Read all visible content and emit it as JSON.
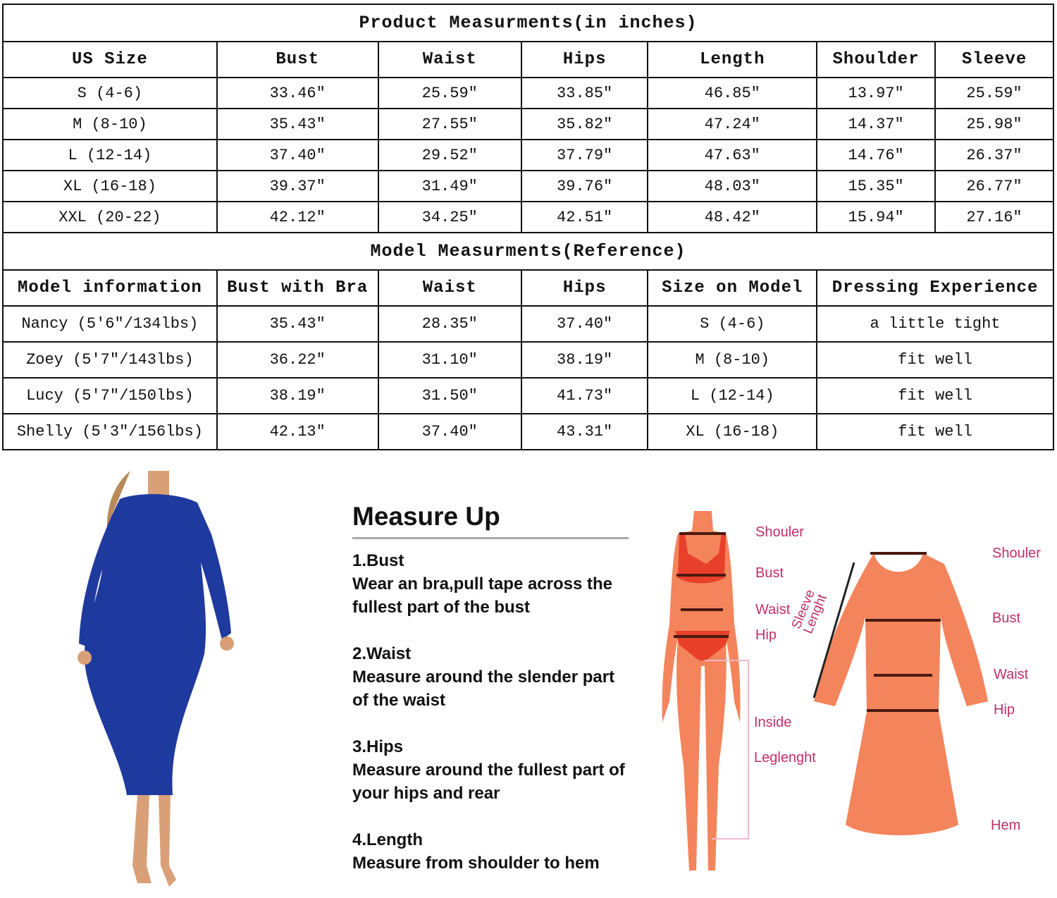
{
  "product_table": {
    "title": "Product Measurments(in inches)",
    "headers": [
      "US Size",
      "Bust",
      "Waist",
      "Hips",
      "Length",
      "Shoulder",
      "Sleeve"
    ],
    "rows": [
      [
        "S (4-6)",
        "33.46″",
        "25.59″",
        "33.85″",
        "46.85″",
        "13.97″",
        "25.59″"
      ],
      [
        "M (8-10)",
        "35.43″",
        "27.55″",
        "35.82″",
        "47.24″",
        "14.37″",
        "25.98″"
      ],
      [
        "L (12-14)",
        "37.40″",
        "29.52″",
        "37.79″",
        "47.63″",
        "14.76″",
        "26.37″"
      ],
      [
        "XL (16-18)",
        "39.37″",
        "31.49″",
        "39.76″",
        "48.03″",
        "15.35″",
        "26.77″"
      ],
      [
        "XXL (20-22)",
        "42.12″",
        "34.25″",
        "42.51″",
        "48.42″",
        "15.94″",
        "27.16″"
      ]
    ]
  },
  "model_table": {
    "title": "Model Measurments(Reference)",
    "headers": [
      "Model information",
      "Bust with Bra",
      "Waist",
      "Hips",
      "Size on Model",
      "Dressing Experience"
    ],
    "rows": [
      [
        "Nancy (5'6″/134lbs)",
        "35.43″",
        "28.35″",
        "37.40″",
        "S (4-6)",
        "a little tight"
      ],
      [
        "Zoey (5'7″/143lbs)",
        "36.22″",
        "31.10″",
        "38.19″",
        "M (8-10)",
        "fit well"
      ],
      [
        "Lucy (5'7″/150lbs)",
        "38.19″",
        "31.50″",
        "41.73″",
        "L (12-14)",
        "fit well"
      ],
      [
        "Shelly (5'3″/156lbs)",
        "42.13″",
        "37.40″",
        "43.31″",
        "XL (16-18)",
        "fit well"
      ]
    ]
  },
  "measure_up": {
    "title": "Measure Up",
    "steps": [
      {
        "title": "1.Bust",
        "text": "Wear an bra,pull tape across the fullest part of the bust"
      },
      {
        "title": "2.Waist",
        "text": "Measure around the slender part of the waist"
      },
      {
        "title": "3.Hips",
        "text": "Measure around the fullest part of your hips and rear"
      },
      {
        "title": "4.Length",
        "text": "Measure from shoulder to hem"
      }
    ]
  },
  "body_diagram": {
    "labels": [
      "Shouler",
      "Bust",
      "Waist",
      "Hip",
      "Inside",
      "Leglenght"
    ]
  },
  "dress_diagram": {
    "labels": [
      "Shouler",
      "Bust",
      "Waist",
      "Hip",
      "Hem"
    ],
    "sleeve_label": [
      "Sleeve",
      "Lenght"
    ]
  },
  "colors": {
    "figure": "#f4845c",
    "underwear": "#e8402a",
    "label": "#c0306a",
    "dress_photo": "#1f3a9e"
  }
}
